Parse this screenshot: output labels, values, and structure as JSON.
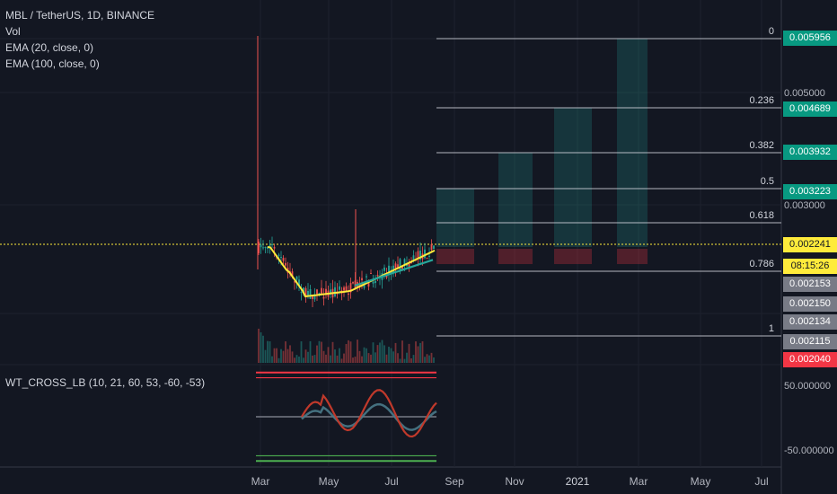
{
  "header": {
    "symbol": "MBL / TetherUS, 1D, BINANCE",
    "indicators": [
      "Vol",
      "EMA (20, close, 0)",
      "EMA (100, close, 0)"
    ],
    "osc_label": "WT_CROSS_LB (10, 21, 60, 53, -60, -53)"
  },
  "chart_data": {
    "type": "line",
    "xlabel": "",
    "ylabel": "",
    "x_ticks": [
      "Mar",
      "May",
      "Jul",
      "Sep",
      "Nov",
      "2021",
      "Mar",
      "May",
      "Jul"
    ],
    "price_axis_labels": [
      "0.005000",
      "0.003000"
    ],
    "price_tags": [
      {
        "value": "0.005956",
        "color": "#089981"
      },
      {
        "value": "0.004689",
        "color": "#089981"
      },
      {
        "value": "0.003932",
        "color": "#089981"
      },
      {
        "value": "0.003223",
        "color": "#089981"
      },
      {
        "value": "0.002241",
        "color": "#ffeb3b"
      },
      {
        "value": "08:15:26",
        "color": "#ffeb3b"
      },
      {
        "value": "0.002153",
        "color": "#787b86"
      },
      {
        "value": "0.002150",
        "color": "#787b86"
      },
      {
        "value": "0.002134",
        "color": "#787b86"
      },
      {
        "value": "0.002115",
        "color": "#787b86"
      },
      {
        "value": "0.002040",
        "color": "#f23645"
      }
    ],
    "fib_levels": [
      {
        "label": "0",
        "value": 0.005956
      },
      {
        "label": "0.236",
        "value": 0.004689
      },
      {
        "label": "0.382",
        "value": 0.003932
      },
      {
        "label": "0.5",
        "value": 0.003223
      },
      {
        "label": "0.618",
        "value": null
      },
      {
        "label": "0.786",
        "value": null
      },
      {
        "label": "1",
        "value": null
      }
    ],
    "current_price": 0.002241,
    "oscillator_axis_labels": [
      "50.000000",
      "-50.000000"
    ],
    "oscillator_levels": [
      60,
      53,
      -53,
      -60
    ]
  },
  "colors": {
    "background": "#131722",
    "grid": "#1e222d",
    "fib": "#d1d4dc",
    "ema_fast": "#ffeb3b",
    "ema_slow": "#26a69a",
    "current_price": "#ffeb3b",
    "osc_upper": "#f23645",
    "osc_lower": "#4caf50"
  }
}
